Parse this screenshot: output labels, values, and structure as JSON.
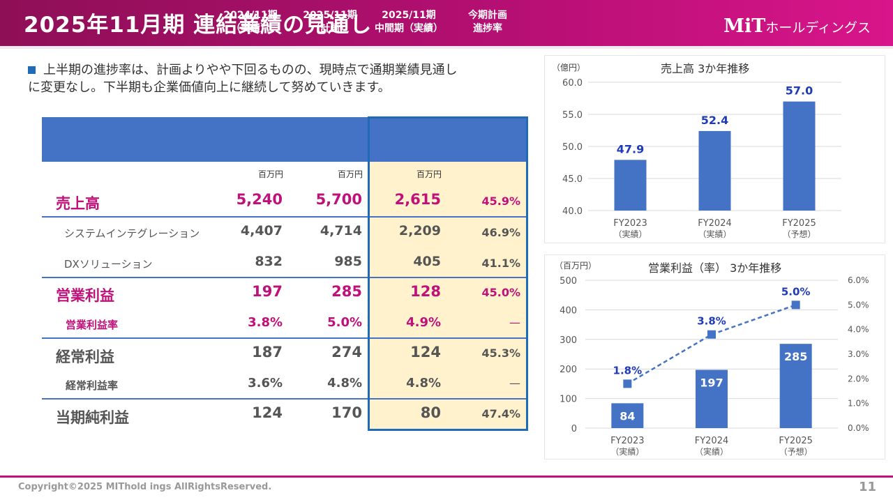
{
  "header": {
    "title": "2025年11月期 連結業績の見通し",
    "logo_mark": "MiT",
    "logo_sub": "ホールディングス"
  },
  "bullet": {
    "line1": "上半期の進捗率は、計画よりやや下回るものの、現時点で通期業績見通し",
    "line2": "に変更なし。下半期も企業価値向上に継続して努めていきます。"
  },
  "table": {
    "columns": [
      {
        "line1": "2024/11期",
        "line2": "（実績）"
      },
      {
        "line1": "2025/11期",
        "line2": "（計画）"
      },
      {
        "line1": "2025/11期",
        "line2": "中間期（実績）"
      },
      {
        "line1": "今期計画",
        "line2": "進捗率"
      }
    ],
    "unit": "百万円",
    "rows": [
      {
        "label": "売上高",
        "values": [
          "5,240",
          "5,700",
          "2,615",
          "45.9%"
        ]
      },
      {
        "label": "システムインテグレーション",
        "values": [
          "4,407",
          "4,714",
          "2,209",
          "46.9%"
        ]
      },
      {
        "label": "DXソリューション",
        "values": [
          "832",
          "985",
          "405",
          "41.1%"
        ]
      },
      {
        "label": "営業利益",
        "values": [
          "197",
          "285",
          "128",
          "45.0%"
        ]
      },
      {
        "label": "営業利益率",
        "values": [
          "3.8%",
          "5.0%",
          "4.9%",
          "—"
        ]
      },
      {
        "label": "経常利益",
        "values": [
          "187",
          "274",
          "124",
          "45.3%"
        ]
      },
      {
        "label": "経常利益率",
        "values": [
          "3.6%",
          "4.8%",
          "4.8%",
          "—"
        ]
      },
      {
        "label": "当期純利益",
        "values": [
          "124",
          "170",
          "80",
          "47.4%"
        ]
      }
    ]
  },
  "chart_data": [
    {
      "type": "bar",
      "title": "売上高 3か年推移",
      "unit": "（億円）",
      "categories": [
        "FY2023",
        "FY2024",
        "FY2025"
      ],
      "category_notes": [
        "（実績）",
        "（実績）",
        "（予想）"
      ],
      "values": [
        47.9,
        52.4,
        57.0
      ],
      "value_labels": [
        "47.9",
        "52.4",
        "57.0"
      ],
      "ylim": [
        40,
        60
      ],
      "yticks": [
        "40.0",
        "45.0",
        "50.0",
        "55.0",
        "60.0"
      ],
      "bar_color": "#4472c4",
      "label_color": "#1f3bb8"
    },
    {
      "type": "bar",
      "title": "営業利益（率） 3か年推移",
      "unit": "（百万円）",
      "categories": [
        "FY2023",
        "FY2024",
        "FY2025"
      ],
      "category_notes": [
        "（実績）",
        "（実績）",
        "（予想）"
      ],
      "values": [
        84,
        197,
        285
      ],
      "value_labels": [
        "84",
        "197",
        "285"
      ],
      "ylim": [
        0,
        500
      ],
      "yticks": [
        "0",
        "100",
        "200",
        "300",
        "400",
        "500"
      ],
      "secondary": {
        "type": "line",
        "values": [
          1.8,
          3.8,
          5.0
        ],
        "value_labels": [
          "1.8%",
          "3.8%",
          "5.0%"
        ],
        "ylim": [
          0,
          6
        ],
        "yticks": [
          "0.0%",
          "1.0%",
          "2.0%",
          "3.0%",
          "4.0%",
          "5.0%",
          "6.0%"
        ]
      },
      "bar_color": "#4472c4",
      "label_color": "#1f3bb8"
    }
  ],
  "footer": {
    "copyright": "Copyright©2025 MIThold ings AllRightsReserved.",
    "page": "11"
  }
}
